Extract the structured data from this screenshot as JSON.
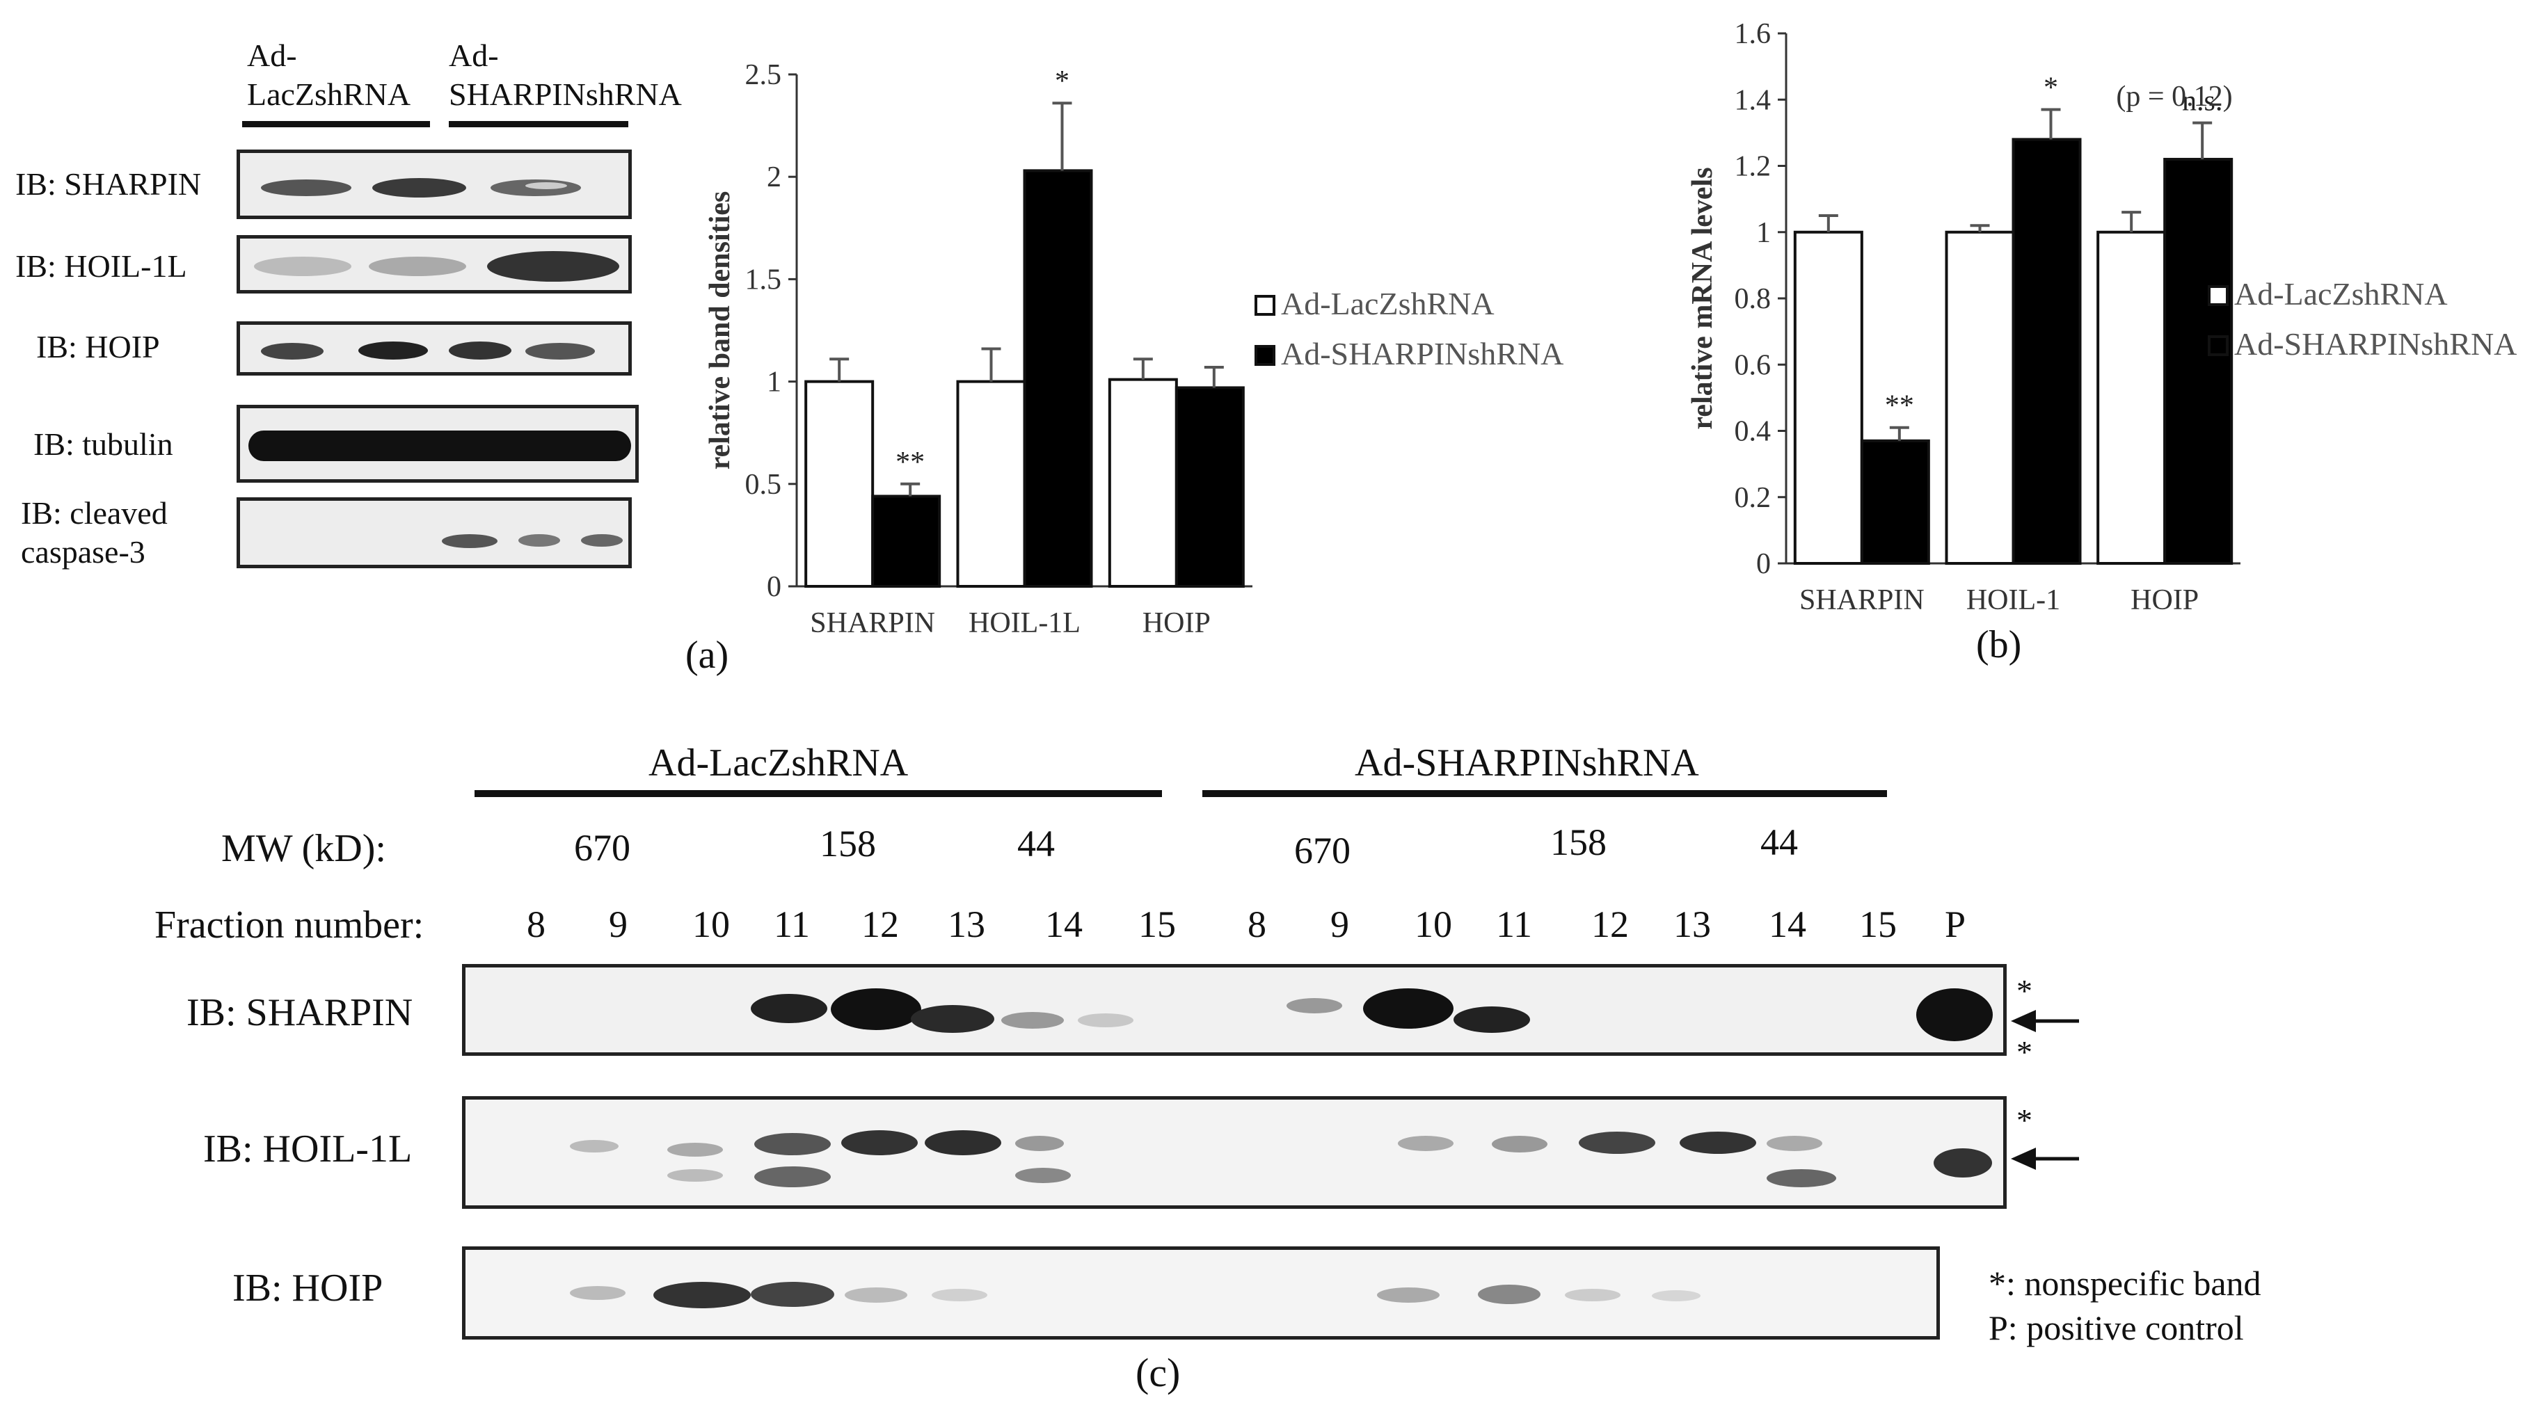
{
  "panel_a": {
    "group_labels": [
      "Ad-\nLacZshRNA",
      "Ad-\nSHARPINshRNA"
    ],
    "blots": [
      {
        "label": "IB: SHARPIN"
      },
      {
        "label": "IB: HOIL-1L"
      },
      {
        "label": "IB: HOIP"
      },
      {
        "label": "IB: tubulin"
      },
      {
        "label": "IB: cleaved\ncaspase-3"
      }
    ],
    "caption": "(a)"
  },
  "panel_b": {
    "caption": "(b)"
  },
  "panel_c": {
    "group1": "Ad-LacZshRNA",
    "group2": "Ad-SHARPINshRNA",
    "mw_label": "MW (kD):",
    "mw_values_g1": [
      "670",
      "158",
      "44"
    ],
    "mw_values_g2": [
      "670",
      "158",
      "44"
    ],
    "fraction_label": "Fraction number:",
    "fractions": [
      "8",
      "9",
      "10",
      "11",
      "12",
      "13",
      "14",
      "15"
    ],
    "positive_lane": "P",
    "blots": [
      {
        "label": "IB: SHARPIN"
      },
      {
        "label": "IB: HOIL-1L"
      },
      {
        "label": "IB: HOIP"
      }
    ],
    "legend_nonspecific": "*: nonspecific band",
    "legend_positive": "P:  positive control",
    "star": "*",
    "caption": "(c)"
  },
  "chart_data": [
    {
      "type": "bar",
      "categories": [
        "SHARPIN",
        "HOIL-1L",
        "HOIP"
      ],
      "series": [
        {
          "name": "Ad-LacZshRNA",
          "values": [
            1.0,
            1.0,
            1.01
          ],
          "errors": [
            0.11,
            0.16,
            0.1
          ],
          "color": "#ffffff"
        },
        {
          "name": "Ad-SHARPINshRNA",
          "values": [
            0.44,
            2.03,
            0.97
          ],
          "errors": [
            0.06,
            0.33,
            0.1
          ],
          "color": "#000000"
        }
      ],
      "significance": [
        "**",
        "*",
        ""
      ],
      "ylabel": "relative band densities",
      "ylim": [
        0,
        2.5
      ],
      "yticks": [
        "0",
        "0.5",
        "1",
        "1.5",
        "2",
        "2.5"
      ],
      "legend": "right"
    },
    {
      "type": "bar",
      "categories": [
        "SHARPIN",
        "HOIL-1",
        "HOIP"
      ],
      "series": [
        {
          "name": "Ad-LacZshRNA",
          "values": [
            1.0,
            1.0,
            1.0
          ],
          "errors": [
            0.05,
            0.02,
            0.06
          ],
          "color": "#ffffff"
        },
        {
          "name": "Ad-SHARPINshRNA",
          "values": [
            0.37,
            1.28,
            1.22
          ],
          "errors": [
            0.04,
            0.09,
            0.11
          ],
          "color": "#000000"
        }
      ],
      "significance": [
        "**",
        "*",
        "n.s."
      ],
      "significance_note": "(p = 0.12)",
      "ylabel": "relative mRNA levels",
      "ylim": [
        0,
        1.6
      ],
      "yticks": [
        "0",
        "0.2",
        "0.4",
        "0.6",
        "0.8",
        "1",
        "1.2",
        "1.4",
        "1.6"
      ],
      "legend": "right"
    }
  ]
}
